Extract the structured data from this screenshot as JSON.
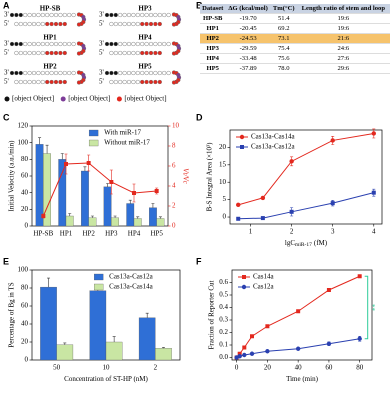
{
  "panels": [
    "A",
    "B",
    "C",
    "D",
    "E",
    "F"
  ],
  "diagram": {
    "hairpins": [
      {
        "label": "HP-SB",
        "end3": "3'",
        "end5": "5'"
      },
      {
        "label": "HP1",
        "end3": "3'",
        "end5": "5'"
      },
      {
        "label": "HP2",
        "end3": "3'",
        "end5": "5'"
      },
      {
        "label": "HP3",
        "end3": "3'",
        "end5": "5'"
      },
      {
        "label": "HP4",
        "end3": "3'",
        "end5": "5'"
      },
      {
        "label": "HP5",
        "end3": "3'",
        "end5": "5'"
      }
    ],
    "legend": [
      {
        "label": "Blocker",
        "color": "#111111"
      },
      {
        "label": "Uracil Base",
        "color": "#7d3c98"
      },
      {
        "label": "Complementary Region of Cas14a-sgRNA",
        "color": "#e3281e"
      }
    ]
  },
  "table": {
    "header": [
      "Dataset",
      "ΔG (kcal/mol)",
      "Tm(°C)",
      "Length ratio of stem and loop"
    ],
    "rows": [
      [
        "HP-SB",
        "-19.70",
        "51.4",
        "19:6"
      ],
      [
        "HP1",
        "-20.45",
        "69.2",
        "19:6"
      ],
      [
        "HP2",
        "-24.53",
        "73.1",
        "21:6"
      ],
      [
        "HP3",
        "-29.59",
        "75.4",
        "24:6"
      ],
      [
        "HP4",
        "-33.48",
        "75.6",
        "27:6"
      ],
      [
        "HP5",
        "-37.89",
        "78.0",
        "29:6"
      ]
    ],
    "highlight_row": 2,
    "highlight_color": "#f6c36c",
    "header_color": "#c9d3e3"
  },
  "chart_data": [
    {
      "type": "bar",
      "ylabel": "Initial Velocity (a.u./min)",
      "y2label": "Vt/Vc",
      "categories": [
        "HP-SB",
        "HP1",
        "HP2",
        "HP3",
        "HP4",
        "HP5"
      ],
      "ylim": [
        0,
        120
      ],
      "yticks": [
        0,
        20,
        40,
        60,
        80,
        100,
        120
      ],
      "y2lim": [
        0,
        10
      ],
      "y2ticks": [
        0,
        2,
        4,
        6,
        8,
        10
      ],
      "legend": "upper right",
      "series": [
        {
          "name": "With miR-17",
          "color": "#2f6fd6",
          "values": [
            98,
            80,
            66,
            47,
            27,
            22
          ],
          "errors": [
            8,
            7,
            5,
            4,
            4,
            5
          ]
        },
        {
          "name": "Without miR-17",
          "color": "#c9e6a3",
          "values": [
            87,
            12,
            10,
            10,
            9,
            9
          ],
          "errors": [
            10,
            3,
            2,
            2,
            2,
            2
          ]
        },
        {
          "type": "line",
          "axis": "y2",
          "color": "#e3281e",
          "marker": "square",
          "values": [
            1.0,
            6.2,
            6.3,
            4.4,
            3.3,
            3.5
          ],
          "errors": [
            0.2,
            1.0,
            0.8,
            1.2,
            0.9,
            0.3
          ]
        }
      ]
    },
    {
      "type": "line",
      "xlabel": "lgC",
      "xlabel_sub": "miR-17",
      "xlabel_unit": "(fM)",
      "ylabel": "B-S Integral Area (×10³)",
      "x": [
        0.7,
        1.3,
        2,
        3,
        4
      ],
      "xlim": [
        0.5,
        4.2
      ],
      "xticks": [
        1,
        2,
        3,
        4
      ],
      "ylim": [
        -2,
        25
      ],
      "yticks": [
        0,
        5,
        10,
        15,
        20
      ],
      "legend": "upper left",
      "series": [
        {
          "name": "Cas13a-Cas14a",
          "color": "#e3281e",
          "marker": "circle",
          "values": [
            3.5,
            5.5,
            16,
            22,
            24
          ],
          "errors": [
            0.3,
            0.4,
            1.3,
            1.2,
            1.3
          ]
        },
        {
          "name": "Cas13a-Cas12a",
          "color": "#2a40b0",
          "marker": "square",
          "values": [
            -0.5,
            -0.3,
            1.5,
            4,
            7
          ],
          "errors": [
            0.3,
            0.3,
            1.2,
            0.8,
            1.0
          ]
        }
      ]
    },
    {
      "type": "bar",
      "xlabel": "Concentration of ST-HP (nM)",
      "ylabel": "Percentage of Bg in TS",
      "categories": [
        "50",
        "10",
        "2"
      ],
      "ylim": [
        0,
        100
      ],
      "yticks": [
        0,
        20,
        40,
        60,
        80,
        100
      ],
      "legend": "upper right",
      "series": [
        {
          "name": "Cas13a-Cas12a",
          "color": "#2f6fd6",
          "values": [
            81,
            77,
            47
          ],
          "errors": [
            10,
            4,
            5
          ]
        },
        {
          "name": "Cas13a-Cas14a",
          "color": "#c9e6a3",
          "values": [
            17,
            20,
            13
          ],
          "errors": [
            2,
            6,
            1
          ]
        }
      ]
    },
    {
      "type": "line",
      "xlabel": "Time (min)",
      "ylabel": "Fraction of Reporter Cut",
      "x": [
        0,
        2,
        5,
        10,
        20,
        40,
        60,
        80
      ],
      "xlim": [
        -3,
        88
      ],
      "xticks": [
        0,
        20,
        40,
        60,
        80
      ],
      "ylim": [
        -0.02,
        0.7
      ],
      "yticks": [
        {
          "value": 0,
          "label": "0.0"
        },
        0.1,
        0.2,
        0.3,
        0.4,
        0.5,
        0.6
      ],
      "legend": "upper left",
      "series": [
        {
          "name": "Cas14a",
          "color": "#e3281e",
          "marker": "square",
          "values": [
            0,
            0.03,
            0.08,
            0.17,
            0.25,
            0.37,
            0.54,
            0.65
          ]
        },
        {
          "name": "Cas12a",
          "color": "#2a40b0",
          "marker": "circle",
          "values": [
            0,
            0.01,
            0.02,
            0.03,
            0.05,
            0.07,
            0.11,
            0.15
          ],
          "errors": [
            0,
            0,
            0,
            0,
            0,
            0.01,
            0.015,
            0.02
          ]
        }
      ],
      "annotation": {
        "text": "**",
        "color": "#2ecc9a"
      }
    }
  ]
}
